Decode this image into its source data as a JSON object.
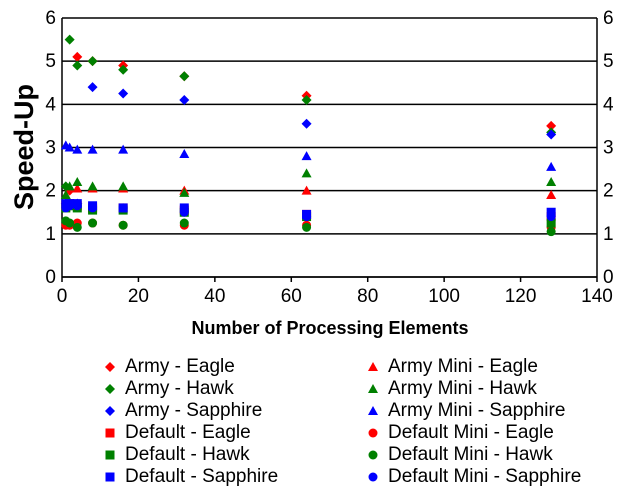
{
  "chart_data": {
    "type": "scatter",
    "title": "",
    "xlabel": "Number of Processing Elements",
    "ylabel": "Speed-Up",
    "xlim": [
      0,
      140
    ],
    "ylim": [
      0,
      6
    ],
    "x_ticks": [
      "0",
      "20",
      "40",
      "60",
      "80",
      "100",
      "120",
      "140"
    ],
    "y_ticks": [
      "0",
      "1",
      "2",
      "3",
      "4",
      "5",
      "6"
    ],
    "y2_ticks": [
      "0",
      "1",
      "2",
      "3",
      "4",
      "5",
      "6"
    ],
    "grid": "horizontal",
    "legend_position": "bottom",
    "series": [
      {
        "name": "Army - Eagle",
        "marker": "diamond",
        "color": "#ff0000",
        "points": [
          [
            2,
            2.0
          ],
          [
            4,
            5.1
          ],
          [
            8,
            5.0
          ],
          [
            16,
            4.9
          ],
          [
            32,
            4.65
          ],
          [
            64,
            4.2
          ],
          [
            128,
            3.5
          ]
        ]
      },
      {
        "name": "Army Mini - Eagle",
        "marker": "triangle",
        "color": "#ff0000",
        "points": [
          [
            2,
            2.05
          ],
          [
            4,
            2.05
          ],
          [
            8,
            2.05
          ],
          [
            16,
            2.05
          ],
          [
            32,
            2.0
          ],
          [
            64,
            2.0
          ],
          [
            128,
            1.9
          ]
        ]
      },
      {
        "name": "Army - Hawk",
        "marker": "diamond",
        "color": "#008000",
        "points": [
          [
            1,
            2.1
          ],
          [
            2,
            5.5
          ],
          [
            4,
            4.9
          ],
          [
            8,
            5.0
          ],
          [
            16,
            4.8
          ],
          [
            32,
            4.65
          ],
          [
            64,
            4.1
          ],
          [
            128,
            3.35
          ]
        ]
      },
      {
        "name": "Army Mini - Hawk",
        "marker": "triangle",
        "color": "#008000",
        "points": [
          [
            1,
            1.9
          ],
          [
            2,
            2.1
          ],
          [
            4,
            2.2
          ],
          [
            8,
            2.1
          ],
          [
            16,
            2.1
          ],
          [
            32,
            1.95
          ],
          [
            64,
            2.4
          ],
          [
            128,
            2.2
          ]
        ]
      },
      {
        "name": "Army - Sapphire",
        "marker": "diamond",
        "color": "#0000ff",
        "points": [
          [
            1,
            1.7
          ],
          [
            2,
            1.7
          ],
          [
            4,
            1.7
          ],
          [
            8,
            4.4
          ],
          [
            16,
            4.25
          ],
          [
            32,
            4.1
          ],
          [
            64,
            3.55
          ],
          [
            128,
            3.3
          ]
        ]
      },
      {
        "name": "Army Mini - Sapphire",
        "marker": "triangle",
        "color": "#0000ff",
        "points": [
          [
            1,
            3.05
          ],
          [
            2,
            3.0
          ],
          [
            4,
            2.95
          ],
          [
            8,
            2.95
          ],
          [
            16,
            2.95
          ],
          [
            32,
            2.85
          ],
          [
            64,
            2.8
          ],
          [
            128,
            2.55
          ]
        ]
      },
      {
        "name": "Default - Eagle",
        "marker": "square",
        "color": "#ff0000",
        "points": [
          [
            1,
            1.65
          ],
          [
            2,
            1.7
          ],
          [
            4,
            1.65
          ],
          [
            8,
            1.6
          ],
          [
            16,
            1.6
          ],
          [
            32,
            1.55
          ],
          [
            64,
            1.45
          ],
          [
            128,
            1.4
          ]
        ]
      },
      {
        "name": "Default Mini - Eagle",
        "marker": "circle",
        "color": "#ff0000",
        "points": [
          [
            1,
            1.2
          ],
          [
            2,
            1.2
          ],
          [
            4,
            1.25
          ],
          [
            8,
            1.25
          ],
          [
            16,
            1.2
          ],
          [
            32,
            1.2
          ],
          [
            64,
            1.2
          ],
          [
            128,
            1.15
          ]
        ]
      },
      {
        "name": "Default - Hawk",
        "marker": "square",
        "color": "#008000",
        "points": [
          [
            1,
            1.6
          ],
          [
            2,
            1.65
          ],
          [
            4,
            1.6
          ],
          [
            8,
            1.55
          ],
          [
            16,
            1.55
          ],
          [
            32,
            1.5
          ],
          [
            64,
            1.4
          ],
          [
            128,
            1.25
          ]
        ]
      },
      {
        "name": "Default Mini - Hawk",
        "marker": "circle",
        "color": "#008000",
        "points": [
          [
            1,
            1.3
          ],
          [
            2,
            1.25
          ],
          [
            4,
            1.15
          ],
          [
            8,
            1.25
          ],
          [
            16,
            1.2
          ],
          [
            32,
            1.25
          ],
          [
            64,
            1.15
          ],
          [
            128,
            1.05
          ]
        ]
      },
      {
        "name": "Default - Sapphire",
        "marker": "square",
        "color": "#0000ff",
        "points": [
          [
            1,
            1.7
          ],
          [
            2,
            1.7
          ],
          [
            4,
            1.7
          ],
          [
            8,
            1.65
          ],
          [
            16,
            1.6
          ],
          [
            32,
            1.6
          ],
          [
            64,
            1.45
          ],
          [
            128,
            1.5
          ]
        ]
      },
      {
        "name": "Default Mini - Sapphire",
        "marker": "circle",
        "color": "#0000ff",
        "points": [
          [
            1,
            1.6
          ],
          [
            2,
            1.65
          ],
          [
            4,
            1.65
          ],
          [
            8,
            1.6
          ],
          [
            16,
            1.6
          ],
          [
            32,
            1.5
          ],
          [
            64,
            1.4
          ],
          [
            128,
            1.4
          ]
        ]
      }
    ],
    "legend_columns": [
      [
        "Army - Eagle",
        "Army - Hawk",
        "Army - Sapphire",
        "Default - Eagle",
        "Default - Hawk",
        "Default - Sapphire"
      ],
      [
        "Army Mini - Eagle",
        "Army Mini - Hawk",
        "Army Mini - Sapphire",
        "Default Mini - Eagle",
        "Default Mini - Hawk",
        "Default Mini - Sapphire"
      ]
    ]
  }
}
